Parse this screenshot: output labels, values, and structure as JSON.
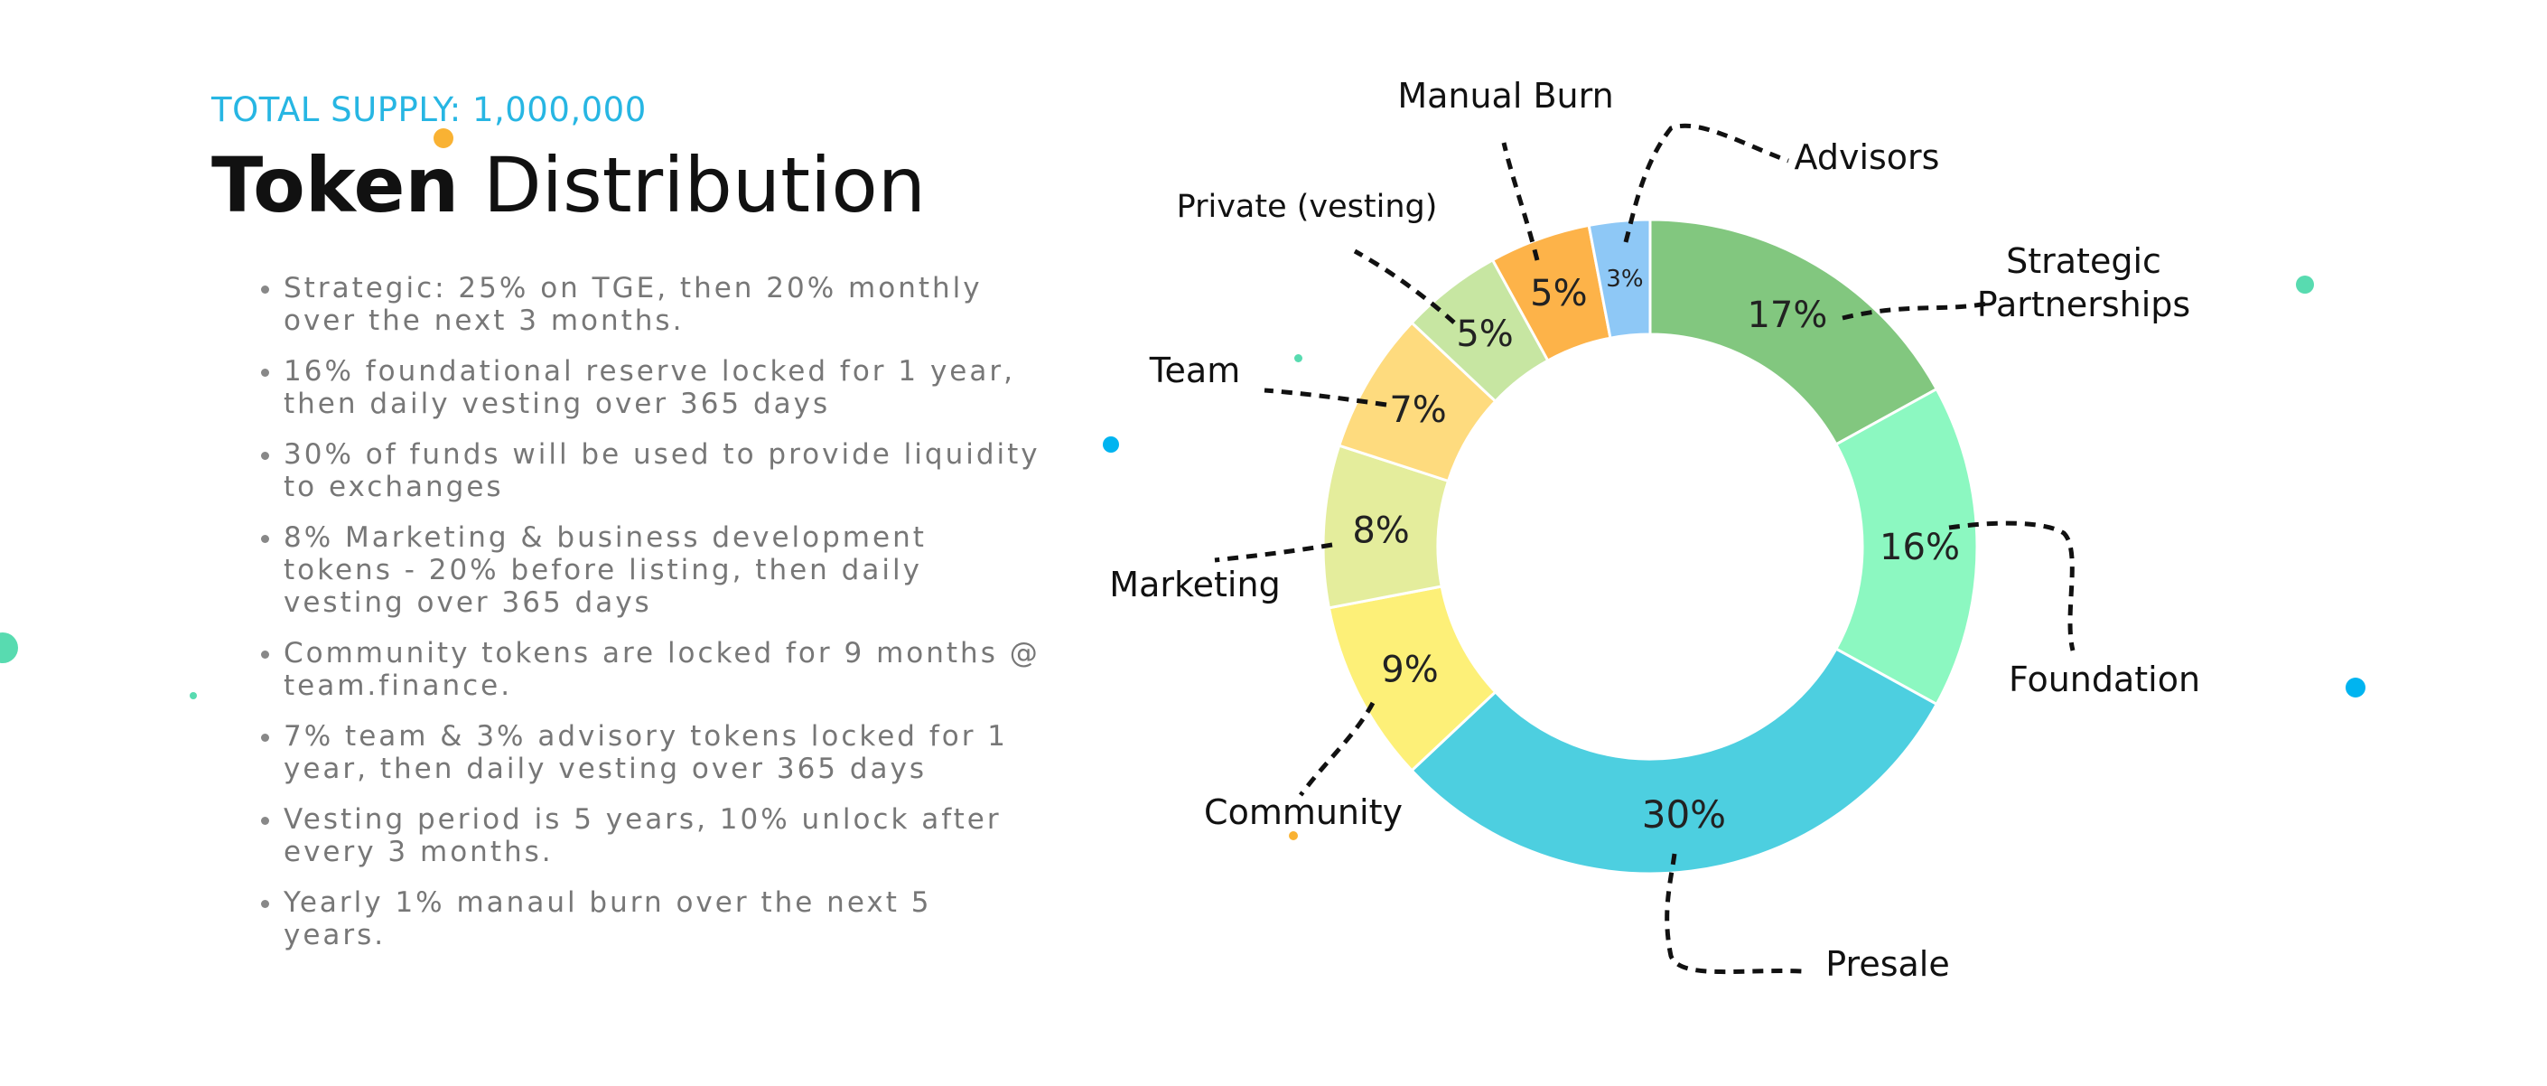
{
  "header": {
    "supply": "TOTAL SUPPLY: 1,000,000",
    "title_strong": "Token",
    "title_rest": "Distribution"
  },
  "notes": [
    "Strategic: 25% on TGE, then 20% monthly over the next 3 months.",
    "16% foundational reserve locked for 1 year, then daily vesting over 365 days",
    "30% of funds will be used to provide liquidity to exchanges",
    "8% Marketing & business development tokens - 20% before listing, then daily vesting over 365 days",
    "Community tokens are locked for 9 months @ team.finance.",
    "7% team & 3% advisory tokens locked for 1 year, then daily vesting over 365 days",
    "Vesting period is 5 years, 10% unlock after every 3 months.",
    "Yearly 1% manaul burn over the next 5 years."
  ],
  "chart_data": {
    "type": "pie",
    "donut": true,
    "slices": [
      {
        "name": "Strategic Partnerships",
        "lines": [
          "Strategic",
          "Partnerships"
        ],
        "value": 17,
        "label": "17%",
        "color": "#82c77f"
      },
      {
        "name": "Foundation",
        "lines": [
          "Foundation"
        ],
        "value": 16,
        "label": "16%",
        "color": "#8cf8c1"
      },
      {
        "name": "Presale",
        "lines": [
          "Presale"
        ],
        "value": 30,
        "label": "30%",
        "color": "#4dcfe0"
      },
      {
        "name": "Community",
        "lines": [
          "Community"
        ],
        "value": 9,
        "label": "9%",
        "color": "#fdf078"
      },
      {
        "name": "Marketing",
        "lines": [
          "Marketing"
        ],
        "value": 8,
        "label": "8%",
        "color": "#e4ed9c"
      },
      {
        "name": "Team",
        "lines": [
          "Team"
        ],
        "value": 7,
        "label": "7%",
        "color": "#fedb7e"
      },
      {
        "name": "Private (vesting)",
        "lines": [
          "Private (vesting)"
        ],
        "value": 5,
        "label": "5%",
        "color": "#c7e6a2"
      },
      {
        "name": "Manual Burn",
        "lines": [
          "Manual Burn"
        ],
        "value": 5,
        "label": "5%",
        "color": "#fdb349"
      },
      {
        "name": "Advisors",
        "lines": [
          "Advisors"
        ],
        "value": 3,
        "label": "3%",
        "color": "#8ec8f6"
      }
    ]
  },
  "decor_colors": [
    "#f9b233",
    "#00b4f0",
    "#40d8a8"
  ]
}
